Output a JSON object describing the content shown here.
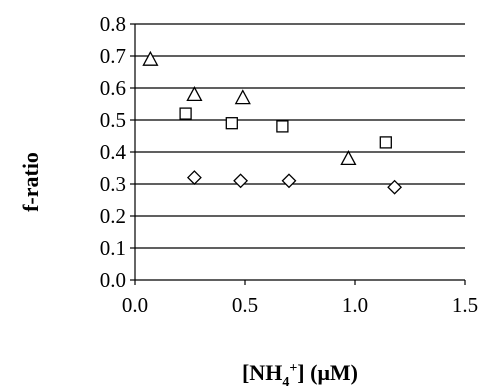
{
  "chart_data": {
    "type": "scatter",
    "xlabel": {
      "prefix": "[NH",
      "sub": "4",
      "sup": "+",
      "suffix": "] (μM)"
    },
    "ylabel": "f-ratio",
    "xlim": [
      0.0,
      1.5
    ],
    "ylim": [
      0.0,
      0.8
    ],
    "x_ticks": [
      "0.0",
      "0.5",
      "1.0",
      "1.5"
    ],
    "y_ticks": [
      "0.0",
      "0.1",
      "0.2",
      "0.3",
      "0.4",
      "0.5",
      "0.6",
      "0.7",
      "0.8"
    ],
    "grid": "horizontal",
    "legend": "none",
    "series": [
      {
        "marker": "triangle",
        "points": [
          [
            0.07,
            0.69
          ],
          [
            0.27,
            0.58
          ],
          [
            0.49,
            0.57
          ],
          [
            0.97,
            0.38
          ]
        ]
      },
      {
        "marker": "square",
        "points": [
          [
            0.23,
            0.52
          ],
          [
            0.44,
            0.49
          ],
          [
            0.67,
            0.48
          ],
          [
            1.14,
            0.43
          ]
        ]
      },
      {
        "marker": "diamond",
        "points": [
          [
            0.27,
            0.32
          ],
          [
            0.48,
            0.31
          ],
          [
            0.7,
            0.31
          ],
          [
            1.18,
            0.29
          ]
        ]
      }
    ]
  }
}
